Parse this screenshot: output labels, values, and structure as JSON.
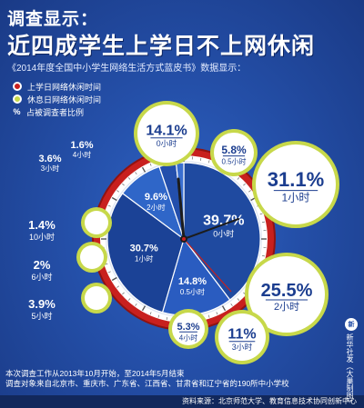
{
  "header": {
    "title": "调查显示：",
    "headline": "近四成学生上学日不上网休闲",
    "subtitle": "《2014年度全国中小学生网络生活方式蓝皮书》数据显示："
  },
  "legend": {
    "school_day": "上学日网络休闲时间",
    "holiday": "休息日网络休闲时间",
    "percent_symbol": "%",
    "percent_note": "占被调查者比例"
  },
  "colors": {
    "school_day_red": "#c8201e",
    "holiday_green": "#c7d84a",
    "wedge_blue": "#1f4aa0",
    "wedge_blue_light": "#2a5cc0",
    "bubble_fill": "#ffffff",
    "bubble_text": "#1b3d8f"
  },
  "chart_data": {
    "type": "pie",
    "title": "近四成学生上学日不上网休闲",
    "series": [
      {
        "name": "上学日网络休闲时间",
        "slices": [
          {
            "label": "0小时",
            "value": 39.7
          },
          {
            "label": "0.5小时",
            "value": 14.8
          },
          {
            "label": "1小时",
            "value": 30.7
          },
          {
            "label": "2小时",
            "value": 9.6
          },
          {
            "label": "3小时",
            "value": 3.6
          },
          {
            "label": "4小时",
            "value": 1.6
          }
        ]
      },
      {
        "name": "休息日网络休闲时间",
        "slices": [
          {
            "label": "0小时",
            "value": 14.1
          },
          {
            "label": "0.5小时",
            "value": 5.8
          },
          {
            "label": "1小时",
            "value": 31.1
          },
          {
            "label": "2小时",
            "value": 25.5
          },
          {
            "label": "3小时",
            "value": 11
          },
          {
            "label": "4小时",
            "value": 5.3
          },
          {
            "label": "5小时",
            "value": 3.9
          },
          {
            "label": "6小时",
            "value": 2.0
          },
          {
            "label": "10小时",
            "value": 1.4
          }
        ]
      }
    ],
    "unit": "%"
  },
  "footnote": {
    "line1": "本次调查工作从2013年10月开始，至2014年5月结束",
    "line2": "调查对象来自北京市、重庆市、广东省、江西省、甘肃省和辽宁省的190所中小学校"
  },
  "source": "资料来源：北京师范大学、教育信息技术协同创新中心",
  "credit": {
    "mark": "新",
    "text": "新华社发（大巢制图）"
  }
}
